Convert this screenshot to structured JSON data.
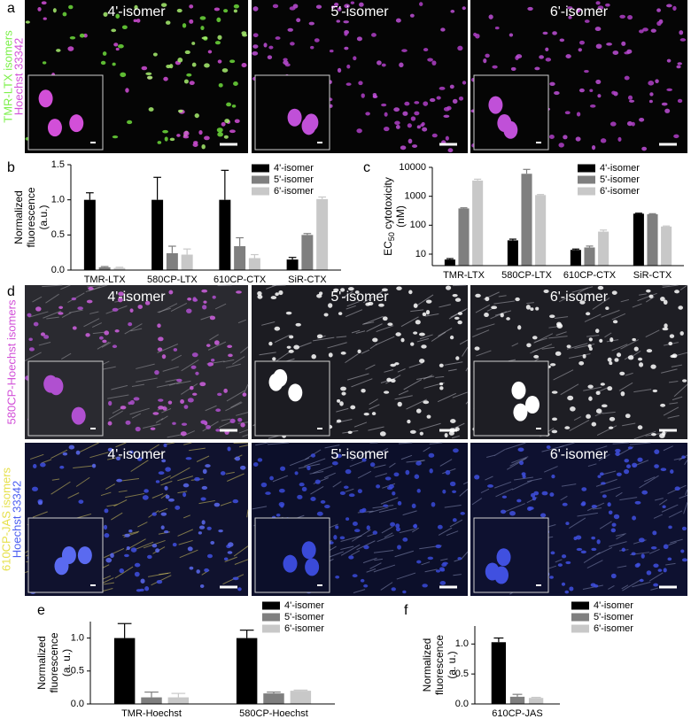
{
  "image_panels": [
    {
      "panel_label": "a",
      "rows": [
        [
          "4'-isomer",
          "5'-isomer",
          "6'-isomer"
        ]
      ],
      "side_labels": [
        [
          {
            "text": "TMR-LTX isomers",
            "color": "#7cf04a"
          },
          {
            "text": "Hoechst 33342",
            "color": "#d24fd8"
          }
        ]
      ]
    },
    {
      "panel_label": "d",
      "rows": [
        [
          "4'-isomer",
          "5'-isomer",
          "6'-isomer"
        ],
        [
          "4'-isomer",
          "5'-isomer",
          "6'-isomer"
        ]
      ],
      "side_labels": [
        [
          {
            "text": "580CP-Hoechst isomers",
            "color": "#d24fd8"
          }
        ],
        [
          {
            "text": "610CP-JAS isomers",
            "color": "#e6e04a"
          },
          {
            "text": "Hoechst 33342",
            "color": "#4a5cf0"
          }
        ]
      ]
    }
  ],
  "chart_data": [
    {
      "type": "bar",
      "panel_label": "b",
      "ylabel": [
        "Normalized",
        "fluorescence",
        "(a.u.)"
      ],
      "categories": [
        "TMR-LTX",
        "580CP-LTX",
        "610CP-CTX",
        "SiR-CTX"
      ],
      "series": [
        {
          "name": "4'-isomer",
          "color": "#000000",
          "values": [
            1.0,
            1.0,
            1.0,
            0.15
          ],
          "errors": [
            0.1,
            0.32,
            0.42,
            0.03
          ]
        },
        {
          "name": "5'-isomer",
          "color": "#7f7f7f",
          "values": [
            0.04,
            0.24,
            0.34,
            0.5
          ],
          "errors": [
            0.01,
            0.1,
            0.12,
            0.02
          ]
        },
        {
          "name": "6'-isomer",
          "color": "#c8c8c8",
          "values": [
            0.03,
            0.22,
            0.17,
            1.01
          ],
          "errors": [
            0.01,
            0.08,
            0.05,
            0.03
          ]
        }
      ],
      "ylim": [
        0,
        1.5
      ],
      "yticks": [
        {
          "value": 0,
          "label": "0.0"
        },
        {
          "value": 0.5,
          "label": "0.5"
        },
        {
          "value": 1,
          "label": "1.0"
        },
        {
          "value": 1.5,
          "label": "1.5"
        }
      ],
      "legend": "upper right"
    },
    {
      "type": "bar",
      "panel_label": "c",
      "log_scale": true,
      "ylabel": [
        [
          {
            "text": "EC"
          },
          {
            "text": "50",
            "sub": true
          },
          {
            "text": " cytotoxicity"
          }
        ],
        "(nM)"
      ],
      "categories": [
        "TMR-LTX",
        "580CP-LTX",
        "610CP-CTX",
        "SiR-CTX"
      ],
      "series": [
        {
          "name": "4'-isomer",
          "color": "#000000",
          "values": [
            6.5,
            30,
            14,
            250
          ],
          "errors": [
            0.5,
            3,
            1,
            10
          ]
        },
        {
          "name": "5'-isomer",
          "color": "#7f7f7f",
          "values": [
            380,
            6000,
            17,
            240
          ],
          "errors": [
            20,
            2500,
            2,
            10
          ]
        },
        {
          "name": "6'-isomer",
          "color": "#c8c8c8",
          "values": [
            3500,
            1100,
            60,
            90
          ],
          "errors": [
            400,
            50,
            8,
            4
          ]
        }
      ],
      "ylim": [
        4,
        10000
      ],
      "yticks": [
        10,
        100,
        1000,
        10000
      ],
      "legend": "upper right"
    },
    {
      "type": "bar",
      "panel_label": "e",
      "ylabel": [
        "Normalized",
        "fluorescence",
        "(a. u.)"
      ],
      "categories": [
        "TMR-Hoechst",
        "580CP-Hoechst"
      ],
      "series": [
        {
          "name": "4'-isomer",
          "color": "#000000",
          "values": [
            1.0,
            1.0
          ],
          "errors": [
            0.22,
            0.12
          ]
        },
        {
          "name": "5'-isomer",
          "color": "#7f7f7f",
          "values": [
            0.1,
            0.16
          ],
          "errors": [
            0.08,
            0.02
          ]
        },
        {
          "name": "6'-isomer",
          "color": "#c8c8c8",
          "values": [
            0.1,
            0.2
          ],
          "errors": [
            0.06,
            0.01
          ]
        }
      ],
      "ylim": [
        0,
        1.25
      ],
      "yticks": [
        {
          "value": 0,
          "label": "0.0"
        },
        {
          "value": 0.5,
          "label": "0.5"
        },
        {
          "value": 1,
          "label": "1.0"
        }
      ],
      "legend": "upper right"
    },
    {
      "type": "bar",
      "panel_label": "f",
      "ylabel": [
        "Normalized",
        "fluorescence",
        "(a. u.)"
      ],
      "categories": [
        "610CP-JAS"
      ],
      "series": [
        {
          "name": "4'-isomer",
          "color": "#000000",
          "values": [
            1.03
          ],
          "errors": [
            0.07
          ]
        },
        {
          "name": "5'-isomer",
          "color": "#7f7f7f",
          "values": [
            0.12
          ],
          "errors": [
            0.04
          ]
        },
        {
          "name": "6'-isomer",
          "color": "#c8c8c8",
          "values": [
            0.1
          ],
          "errors": [
            0.01
          ]
        }
      ],
      "ylim": [
        0,
        1.3
      ],
      "yticks": [
        {
          "value": 0,
          "label": "0.0"
        },
        {
          "value": 0.5,
          "label": "0.5"
        },
        {
          "value": 1,
          "label": "1.0"
        }
      ],
      "legend": "upper right"
    }
  ]
}
